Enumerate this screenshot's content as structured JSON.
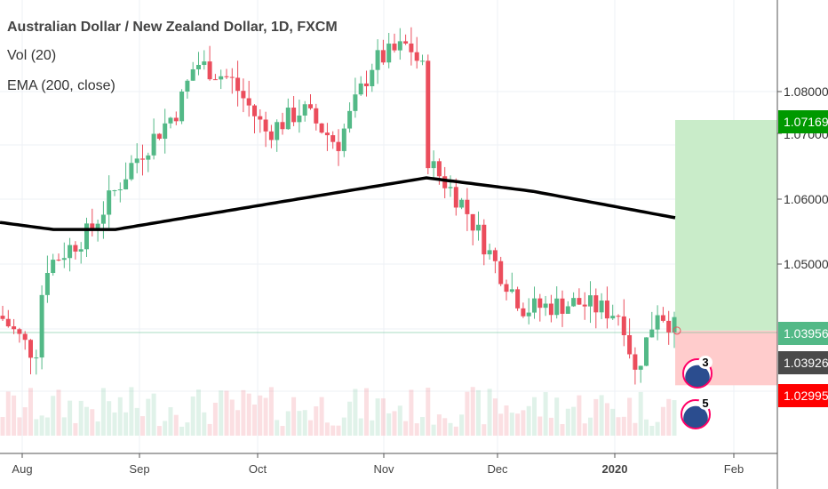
{
  "legend": {
    "title": "Australian Dollar / New Zealand Dollar, 1D, FXCM",
    "vol": "Vol (20)",
    "ema": "EMA (200, close)"
  },
  "price_axis": [
    "1.08000",
    "1.07000",
    "1.06000",
    "1.05000"
  ],
  "price_tags": {
    "target": "1.07169",
    "current": "1.03956",
    "entry": "1.03926",
    "stop": "1.02995"
  },
  "time_axis": [
    "Aug",
    "Sep",
    "Oct",
    "Nov",
    "Dec",
    "2020",
    "Feb"
  ],
  "events": [
    {
      "count": "3"
    },
    {
      "count": "5"
    }
  ],
  "colors": {
    "up": "#53b987",
    "down": "#eb4d5c",
    "target": "#009900",
    "current": "#53b987",
    "entry": "#4a4a4a",
    "stop": "#ff0000"
  },
  "chart_data": {
    "type": "candlestick",
    "close_keyframes": [
      1.0418,
      1.035,
      1.05,
      1.056,
      1.068,
      1.077,
      1.085,
      1.082,
      1.073,
      1.077,
      1.071,
      1.085,
      1.088,
      1.083,
      1.068,
      1.061,
      1.05,
      1.043,
      1.044,
      1.042,
      1.032,
      1.043,
      1.0396
    ],
    "ema_keyframes": [
      1.0577,
      1.0565,
      1.0565,
      1.0608,
      1.0653,
      1.063,
      1.0585
    ],
    "position": {
      "entry": 1.03926,
      "target": 1.07169,
      "stop": 1.02995
    }
  }
}
